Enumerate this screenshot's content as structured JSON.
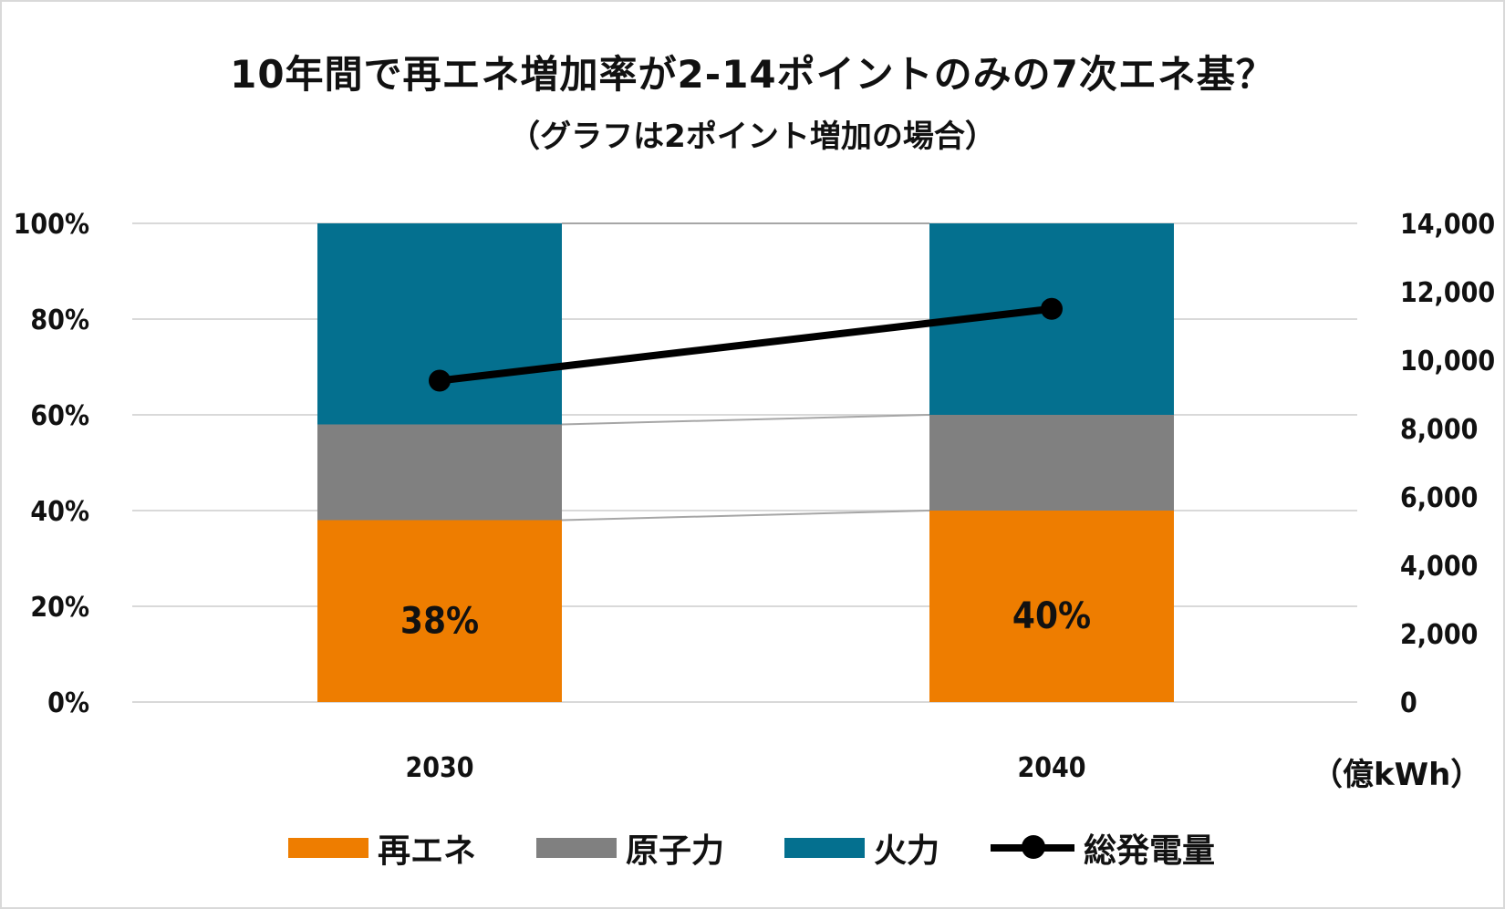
{
  "chart_data": {
    "type": "bar",
    "stacked": true,
    "title": "10年間で再エネ増加率が2-14ポイントのみの7次エネ基？",
    "subtitle": "（グラフは2ポイント増加の場合）",
    "categories": [
      "2030",
      "2040"
    ],
    "series": [
      {
        "name": "再エネ",
        "values": [
          38,
          40
        ],
        "color": "#ee7d00",
        "axis": "left",
        "labels": [
          "38%",
          "40%"
        ]
      },
      {
        "name": "原子力",
        "values": [
          20,
          20
        ],
        "color": "#808080",
        "axis": "left"
      },
      {
        "name": "火力",
        "values": [
          42,
          40
        ],
        "color": "#04708f",
        "axis": "left"
      },
      {
        "name": "総発電量",
        "type": "line",
        "values": [
          9400,
          11500
        ],
        "color": "#000000",
        "axis": "right"
      }
    ],
    "y_left": {
      "ylim": [
        0,
        100
      ],
      "ticks": [
        "0%",
        "20%",
        "40%",
        "60%",
        "80%",
        "100%"
      ]
    },
    "y_right": {
      "ylim": [
        0,
        14000
      ],
      "ticks": [
        "0",
        "2,000",
        "4,000",
        "6,000",
        "8,000",
        "10,000",
        "12,000",
        "14,000"
      ],
      "unit_label": "（億kWh）"
    },
    "grid": true,
    "legend_position": "bottom"
  }
}
